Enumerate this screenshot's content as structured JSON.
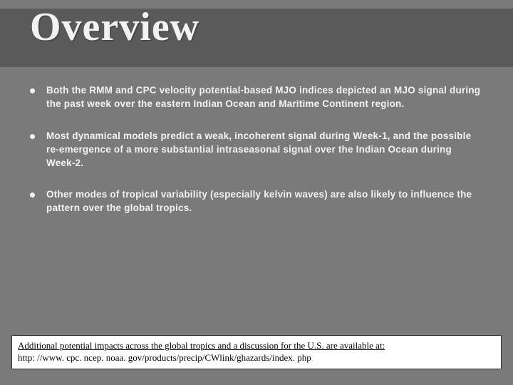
{
  "title": "Overview",
  "bullets": [
    "Both the RMM and CPC velocity potential-based MJO indices depicted an MJO signal during the past week over the eastern Indian Ocean and Maritime Continent region.",
    "Most dynamical models predict a weak, incoherent signal during Week-1, and the possible re-emergence of a more substantial intraseasonal signal over the Indian Ocean during Week-2.",
    "Other modes of tropical variability (especially kelvin waves) are also likely to influence the pattern over the global tropics."
  ],
  "footer_text": "Additional potential impacts across the global tropics and a discussion for the U.S. are available at:",
  "footer_url": "http: //www. cpc. ncep. noaa. gov/products/precip/CWlink/ghazards/index. php",
  "colors": {
    "page_bg": "#7a7a7a",
    "band_bg": "#5a5a5a",
    "text_light": "#f2f2f2",
    "footer_bg": "#ffffff",
    "footer_text": "#000000"
  }
}
